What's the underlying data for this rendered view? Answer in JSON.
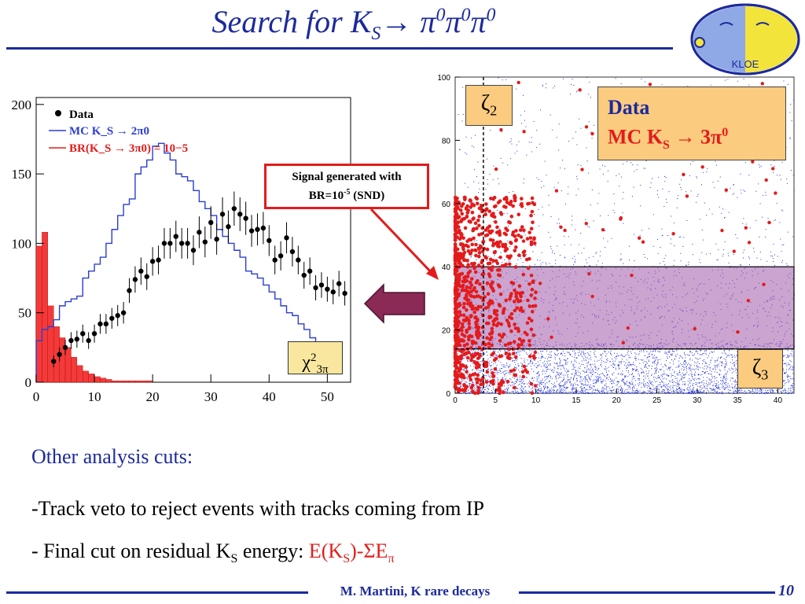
{
  "title": {
    "prefix": "Search for K",
    "sub": "S",
    "arrow": "→ π",
    "sup1": "0",
    "pi2": "π",
    "sup2": "0",
    "pi3": "π",
    "sup3": "0"
  },
  "logo": {
    "text": "KLOE"
  },
  "chi_box": {
    "chi": "χ",
    "sup": "2",
    "sub": "3π"
  },
  "signal_box": {
    "line1": "Signal generated with",
    "line2_a": "BR=10",
    "line2_sup": "-5",
    "line2_b": " (SND)"
  },
  "legend": {
    "line1": "Data",
    "line2_a": "MC K",
    "line2_sub": "S",
    "line2_b": " → 3π",
    "line2_sup": "0"
  },
  "zeta2": {
    "sym": "ζ",
    "sub": "2"
  },
  "zeta3": {
    "sym": "ζ",
    "sub": "3"
  },
  "bullets": {
    "heading": "Other analysis cuts:",
    "item1": "-Track veto to reject events with tracks coming from IP",
    "item2_a": "- Final cut on residual K",
    "item2_sub": "S",
    "item2_b": " energy: ",
    "item2_red_a": "E(K",
    "item2_red_sub": "S",
    "item2_red_b": ")-ΣE",
    "item2_red_sub2": "π"
  },
  "footer": {
    "text": "M. Martini, K rare decays",
    "page": "10"
  },
  "colors": {
    "blue": "#1c2a9c",
    "red": "#e31b1b",
    "orange": "#fbcb7f",
    "purple": "#8b2a55"
  },
  "chart_data": [
    {
      "type": "bar",
      "legend": [
        "Data",
        "MC K_S → 2π0",
        "BR(K_S → 3π0) = 10−5"
      ],
      "xlim": [
        0,
        54
      ],
      "ylim": [
        0,
        205
      ],
      "xticks": [
        0,
        10,
        20,
        30,
        40,
        50
      ],
      "yticks": [
        0,
        50,
        100,
        150,
        200
      ],
      "series": [
        {
          "name": "Data",
          "x": [
            3,
            4,
            5,
            6,
            7,
            8,
            9,
            10,
            11,
            12,
            13,
            14,
            15,
            16,
            17,
            18,
            19,
            20,
            21,
            22,
            23,
            24,
            25,
            26,
            27,
            28,
            29,
            30,
            31,
            32,
            33,
            34,
            35,
            36,
            37,
            38,
            39,
            40,
            41,
            42,
            43,
            44,
            45,
            46,
            47,
            48,
            49,
            50,
            51,
            52,
            53
          ],
          "values": [
            15,
            20,
            25,
            30,
            31,
            35,
            30,
            35,
            42,
            42,
            46,
            48,
            50,
            66,
            74,
            80,
            76,
            87,
            88,
            100,
            100,
            105,
            100,
            100,
            95,
            108,
            101,
            115,
            103,
            121,
            112,
            125,
            121,
            118,
            109,
            110,
            111,
            102,
            88,
            91,
            104,
            94,
            88,
            77,
            80,
            68,
            70,
            67,
            65,
            71,
            64
          ]
        },
        {
          "name": "MC K_S → 2π0",
          "x_edges_step": 1,
          "values": [
            30,
            38,
            40,
            45,
            55,
            58,
            60,
            62,
            75,
            80,
            85,
            90,
            100,
            110,
            120,
            128,
            132,
            150,
            155,
            160,
            170,
            172,
            165,
            160,
            150,
            148,
            145,
            138,
            130,
            125,
            120,
            110,
            105,
            100,
            95,
            90,
            80,
            78,
            75,
            70,
            65,
            60,
            55,
            50,
            48,
            42,
            38,
            32,
            28,
            22
          ]
        },
        {
          "name": "BR(K_S → 3π0) = 10−5",
          "x_edges_step": 1,
          "values": [
            98,
            108,
            55,
            40,
            32,
            25,
            18,
            12,
            8,
            6,
            4,
            3,
            2,
            1,
            1,
            1,
            1,
            1,
            1,
            1,
            0,
            0,
            0,
            0,
            0,
            0,
            0,
            0,
            0,
            0,
            0,
            0,
            0,
            0,
            0,
            0,
            0,
            0,
            0,
            0,
            0,
            0,
            0,
            0,
            0,
            0,
            0,
            0,
            0,
            0
          ]
        }
      ]
    },
    {
      "type": "scatter",
      "xlim": [
        0,
        42
      ],
      "ylim": [
        0,
        100
      ],
      "xticks": [
        0,
        5,
        10,
        15,
        20,
        25,
        30,
        35,
        40
      ],
      "yticks": [
        0,
        20,
        40,
        60,
        80,
        100
      ],
      "series": [
        {
          "name": "Data"
        },
        {
          "name": "MC K_S → 3π0"
        }
      ],
      "cut_lines": {
        "zeta2_x": 3.5,
        "zeta3_y": 14,
        "box_ymax": 40
      }
    }
  ]
}
